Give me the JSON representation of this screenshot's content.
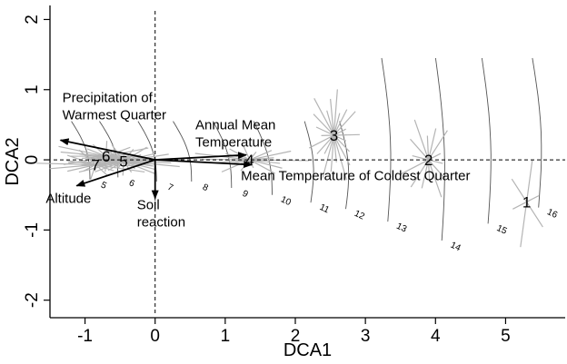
{
  "chart_data": {
    "type": "scatter",
    "title": "",
    "xlabel": "DCA1",
    "ylabel": "DCA2",
    "xlim": [
      -1.5,
      5.85
    ],
    "ylim": [
      -2.25,
      2.2
    ],
    "x_ticks": [
      -1,
      0,
      1,
      2,
      3,
      4,
      5
    ],
    "y_ticks": [
      -2,
      -1,
      0,
      1,
      2
    ],
    "x_tick_labels": [
      "-1",
      "0",
      "1",
      "2",
      "3",
      "4",
      "5"
    ],
    "y_tick_labels": [
      "-2",
      "-1",
      "0",
      "1",
      "2"
    ],
    "reference_lines": {
      "x": 0,
      "y": 0,
      "style": "dashed"
    },
    "cluster_centroids": [
      {
        "label": "1",
        "x": 5.3,
        "y": -0.6
      },
      {
        "label": "2",
        "x": 3.9,
        "y": 0.0
      },
      {
        "label": "3",
        "x": 2.55,
        "y": 0.35
      },
      {
        "label": "4",
        "x": 1.35,
        "y": 0.0
      },
      {
        "label": "5",
        "x": -0.45,
        "y": -0.02
      },
      {
        "label": "6",
        "x": -0.7,
        "y": 0.05
      },
      {
        "label": "7",
        "x": -0.85,
        "y": -0.07
      }
    ],
    "environmental_vectors": [
      {
        "name": "Precipitation of Warmest Quarter",
        "label_lines": [
          "Precipitation of",
          "Warmest Quarter"
        ],
        "x": -1.35,
        "y": 0.28
      },
      {
        "name": "Annual Mean Temperature",
        "label_lines": [
          "Annual Mean",
          "Temperature"
        ],
        "x": 1.3,
        "y": 0.07
      },
      {
        "name": "Mean Temperature of Coldest Quarter",
        "label_lines": [
          "Mean Temperature of Coldest Quarter"
        ],
        "x": 1.38,
        "y": -0.07
      },
      {
        "name": "Altitude",
        "label_lines": [
          "Altitude"
        ],
        "x": -1.12,
        "y": -0.37
      },
      {
        "name": "Soil reaction",
        "label_lines": [
          "Soil",
          "reaction"
        ],
        "x": 0.0,
        "y": -0.55
      }
    ],
    "contour_labels": [
      {
        "label": "5",
        "x": -0.75,
        "y": -0.4
      },
      {
        "label": "6",
        "x": -0.35,
        "y": -0.37
      },
      {
        "label": "7",
        "x": 0.2,
        "y": -0.43
      },
      {
        "label": "8",
        "x": 0.7,
        "y": -0.43
      },
      {
        "label": "9",
        "x": 1.27,
        "y": -0.52
      },
      {
        "label": "10",
        "x": 1.85,
        "y": -0.62
      },
      {
        "label": "11",
        "x": 2.4,
        "y": -0.73
      },
      {
        "label": "12",
        "x": 2.9,
        "y": -0.82
      },
      {
        "label": "13",
        "x": 3.5,
        "y": -1.0
      },
      {
        "label": "14",
        "x": 4.27,
        "y": -1.27
      },
      {
        "label": "15",
        "x": 4.93,
        "y": -1.03
      },
      {
        "label": "16",
        "x": 5.65,
        "y": -0.8
      }
    ],
    "grid": false,
    "legend": "none"
  }
}
